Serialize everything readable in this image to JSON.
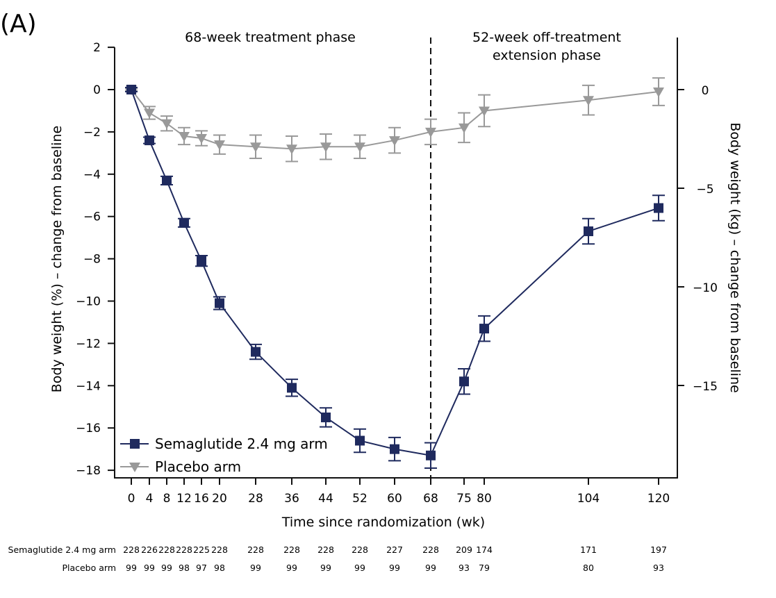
{
  "panel_label": "(A)",
  "chart_data": {
    "type": "line",
    "title": "",
    "panel_label": "(A)",
    "annotations": [
      {
        "text_lines": [
          "68-week treatment phase"
        ],
        "region": "treatment"
      },
      {
        "text_lines": [
          "52-week off-treatment",
          "extension phase"
        ],
        "region": "extension"
      }
    ],
    "phase_divider_week": 68,
    "xlabel": "Time since randomization (wk)",
    "ylabel": "Body weight (%) – change from baseline",
    "ylabel_right": "Body weight (kg) – change from baseline",
    "ylim": [
      -18.4,
      2
    ],
    "y_ticks": [
      2,
      0,
      -2,
      -4,
      -6,
      -8,
      -10,
      -12,
      -14,
      -16,
      -18
    ],
    "y_right_ticks": [
      0,
      -5,
      -10,
      -15
    ],
    "y_right_lim": [
      -19.2,
      2.6
    ],
    "x_ticks": [
      0,
      4,
      8,
      12,
      16,
      20,
      28,
      36,
      44,
      52,
      60,
      68,
      75,
      80,
      104,
      120
    ],
    "x_tick_labels": [
      "0",
      "4",
      "8",
      "12",
      "16",
      "20",
      "28",
      "36",
      "44",
      "52",
      "60",
      "68",
      "75",
      "80",
      "104",
      "120"
    ],
    "x_scale_note": "non-uniform tick spacing",
    "grid": false,
    "legend_position": "bottom-left",
    "series": [
      {
        "name": "Semaglutide 2.4 mg arm",
        "color": "#1f2a5e",
        "marker": "square",
        "x": [
          0,
          4,
          8,
          12,
          16,
          20,
          28,
          36,
          44,
          52,
          60,
          68,
          75,
          80,
          104,
          120
        ],
        "values": [
          0,
          -2.4,
          -4.3,
          -6.3,
          -8.1,
          -10.1,
          -12.4,
          -14.1,
          -15.5,
          -16.6,
          -17.0,
          -17.3,
          -13.8,
          -11.3,
          -6.7,
          -5.6
        ],
        "error": [
          0.1,
          0.15,
          0.2,
          0.2,
          0.25,
          0.3,
          0.35,
          0.4,
          0.45,
          0.55,
          0.55,
          0.6,
          0.6,
          0.6,
          0.6,
          0.6
        ]
      },
      {
        "name": "Placebo arm",
        "color": "#999999",
        "marker": "triangle-down",
        "x": [
          0,
          4,
          8,
          12,
          16,
          20,
          28,
          36,
          44,
          52,
          60,
          68,
          75,
          80,
          104,
          120
        ],
        "values": [
          0,
          -1.1,
          -1.6,
          -2.2,
          -2.3,
          -2.6,
          -2.7,
          -2.8,
          -2.7,
          -2.7,
          -2.4,
          -2.0,
          -1.8,
          -1.0,
          -0.5,
          -0.1
        ],
        "error": [
          0.05,
          0.3,
          0.35,
          0.4,
          0.35,
          0.45,
          0.55,
          0.6,
          0.6,
          0.55,
          0.6,
          0.6,
          0.7,
          0.75,
          0.7,
          0.65
        ]
      }
    ],
    "number_at_risk": {
      "rows": [
        {
          "label": "Semaglutide 2.4 mg arm",
          "values": [
            "228",
            "226",
            "228",
            "228",
            "225",
            "228",
            "228",
            "228",
            "228",
            "228",
            "227",
            "228",
            "209",
            "174",
            "171",
            "197"
          ]
        },
        {
          "label": "Placebo arm",
          "values": [
            "99",
            "99",
            "99",
            "98",
            "97",
            "98",
            "99",
            "99",
            "99",
            "99",
            "99",
            "99",
            "93",
            "79",
            "80",
            "93"
          ]
        }
      ]
    }
  }
}
